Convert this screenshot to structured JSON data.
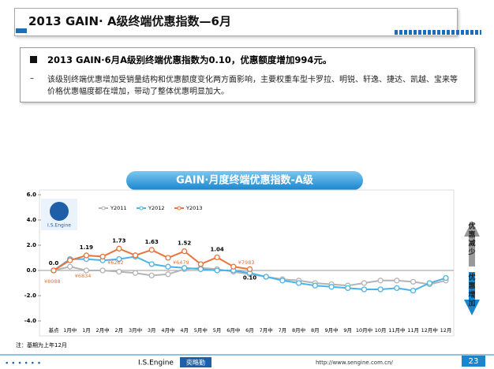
{
  "header": {
    "title": "2013 GAIN· A级终端优惠指数—6月"
  },
  "summary": {
    "headline": "2013 GAIN·6月A级别终端优惠指数为0.10，优惠额度增加994元。",
    "detail": "该级别终端优惠增加受销量结构和优惠额度变化两方面影响，主要权重车型卡罗拉、明锐、轩逸、捷达、凯越、宝来等价格优惠幅度都在增加，带动了整体优惠明显加大。"
  },
  "chart_data": {
    "type": "line",
    "title": "GAIN·月度终端优惠指数-A级",
    "categories": [
      "基点",
      "1月中",
      "1月",
      "2月中",
      "2月",
      "3月中",
      "3月",
      "4月中",
      "4月",
      "5月中",
      "5月",
      "6月中",
      "6月",
      "7月中",
      "7月",
      "8月中",
      "8月",
      "9月中",
      "9月",
      "10月中",
      "10月",
      "11月中",
      "11月",
      "12月中",
      "12月"
    ],
    "series": [
      {
        "name": "Y2011",
        "color": "#b4b4b4",
        "values": [
          0,
          0.3,
          0,
          0,
          -0.1,
          -0.2,
          -0.4,
          -0.3,
          0.1,
          0.2,
          0.1,
          -0.1,
          -0.3,
          -0.5,
          -0.7,
          -0.8,
          -1.0,
          -1.1,
          -1.2,
          -1.0,
          -0.8,
          -0.8,
          -0.9,
          -1.1,
          -0.8
        ]
      },
      {
        "name": "Y2012",
        "color": "#4db3e6",
        "values": [
          0,
          0.9,
          0.9,
          0.8,
          0.9,
          1.1,
          0.5,
          0.3,
          0.2,
          0.1,
          0,
          0,
          -0.2,
          -0.5,
          -0.8,
          -1.0,
          -1.2,
          -1.3,
          -1.4,
          -1.5,
          -1.5,
          -1.4,
          -1.6,
          -1.0,
          -0.6
        ]
      },
      {
        "name": "Y2013",
        "color": "#e8743b",
        "values": [
          0,
          0.8,
          1.19,
          1.1,
          1.73,
          1.2,
          1.63,
          1.0,
          1.52,
          0.5,
          1.04,
          0.3,
          0.1,
          null,
          null,
          null,
          null,
          null,
          null,
          null,
          null,
          null,
          null,
          null,
          null
        ],
        "value_labels": [
          "0.0",
          null,
          null,
          null,
          null,
          null,
          null,
          null,
          null,
          null,
          null,
          null,
          "0.10"
        ]
      }
    ],
    "ylim": [
      -4,
      6
    ],
    "yticks": [
      {
        "value": -4,
        "label": "-4.0"
      },
      {
        "value": -2,
        "label": "-2.0"
      },
      {
        "value": 0,
        "label": "0.0"
      },
      {
        "value": 2,
        "label": "2.0"
      },
      {
        "value": 4,
        "label": "4.0"
      },
      {
        "value": 6,
        "label": "6.0"
      }
    ],
    "grid": false,
    "price_annotations": [
      {
        "index": 0,
        "label": "¥8088"
      },
      {
        "index": 1,
        "label": "¥6834"
      },
      {
        "index": 3,
        "label": "¥6262"
      },
      {
        "index": 7,
        "label": "¥6479"
      },
      {
        "index": 11,
        "label": "¥7983"
      }
    ],
    "side_up": "优惠减少",
    "side_down": "优惠增加",
    "note": "注：基期为上年12月"
  },
  "footer": {
    "brand": "I.S.Engine",
    "brand_cn": "奕略勤",
    "url": "http://www.sengine.com.cn/",
    "page": "23"
  }
}
